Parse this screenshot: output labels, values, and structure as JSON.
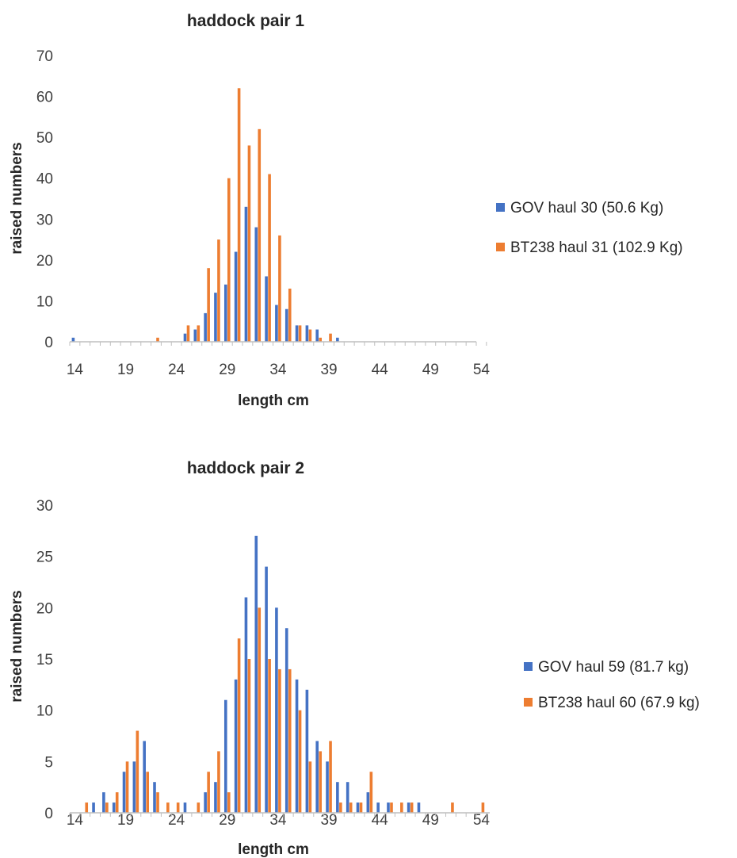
{
  "chart_data": [
    {
      "type": "bar",
      "title": "haddock pair 1",
      "xlabel": "length cm",
      "ylabel": "raised numbers",
      "ylim": [
        0,
        70
      ],
      "yticks": [
        0,
        10,
        20,
        30,
        40,
        50,
        60,
        70
      ],
      "x_range": [
        14,
        54
      ],
      "xtick_labels": [
        14,
        19,
        24,
        29,
        34,
        39,
        44,
        49,
        54
      ],
      "legend_position": "right",
      "grid": false,
      "series": [
        {
          "name": "GOV haul 30 (50.6 Kg)",
          "color": "#4472C4",
          "points": [
            [
              14,
              1
            ],
            [
              25,
              2
            ],
            [
              26,
              3
            ],
            [
              27,
              7
            ],
            [
              28,
              12
            ],
            [
              29,
              14
            ],
            [
              30,
              22
            ],
            [
              31,
              33
            ],
            [
              32,
              28
            ],
            [
              33,
              16
            ],
            [
              34,
              9
            ],
            [
              35,
              8
            ],
            [
              36,
              4
            ],
            [
              37,
              4
            ],
            [
              38,
              3
            ],
            [
              40,
              1
            ]
          ]
        },
        {
          "name": "BT238 haul 31 (102.9 Kg)",
          "color": "#ED7D31",
          "points": [
            [
              22,
              1
            ],
            [
              25,
              4
            ],
            [
              26,
              4
            ],
            [
              27,
              18
            ],
            [
              28,
              25
            ],
            [
              29,
              40
            ],
            [
              30,
              62
            ],
            [
              31,
              48
            ],
            [
              32,
              52
            ],
            [
              33,
              41
            ],
            [
              34,
              26
            ],
            [
              35,
              13
            ],
            [
              36,
              4
            ],
            [
              37,
              3
            ],
            [
              38,
              1
            ],
            [
              39,
              2
            ]
          ]
        }
      ]
    },
    {
      "type": "bar",
      "title": "haddock pair 2",
      "xlabel": "length cm",
      "ylabel": "raised numbers",
      "ylim": [
        0,
        30
      ],
      "yticks": [
        0,
        5,
        10,
        15,
        20,
        25,
        30
      ],
      "x_range": [
        14,
        54
      ],
      "xtick_labels": [
        14,
        19,
        24,
        29,
        34,
        39,
        44,
        49,
        54
      ],
      "legend_position": "right",
      "grid": false,
      "series": [
        {
          "name": "GOV haul 59 (81.7 kg)",
          "color": "#4472C4",
          "points": [
            [
              16,
              1
            ],
            [
              17,
              2
            ],
            [
              18,
              1
            ],
            [
              19,
              4
            ],
            [
              20,
              5
            ],
            [
              21,
              7
            ],
            [
              22,
              3
            ],
            [
              25,
              1
            ],
            [
              27,
              2
            ],
            [
              28,
              3
            ],
            [
              29,
              11
            ],
            [
              30,
              13
            ],
            [
              31,
              21
            ],
            [
              32,
              27
            ],
            [
              33,
              24
            ],
            [
              34,
              20
            ],
            [
              35,
              18
            ],
            [
              36,
              13
            ],
            [
              37,
              12
            ],
            [
              38,
              7
            ],
            [
              39,
              5
            ],
            [
              40,
              3
            ],
            [
              41,
              3
            ],
            [
              42,
              1
            ],
            [
              43,
              2
            ],
            [
              44,
              1
            ],
            [
              45,
              1
            ],
            [
              47,
              1
            ],
            [
              48,
              1
            ]
          ]
        },
        {
          "name": "BT238 haul 60 (67.9 kg)",
          "color": "#ED7D31",
          "points": [
            [
              15,
              1
            ],
            [
              17,
              1
            ],
            [
              18,
              2
            ],
            [
              19,
              5
            ],
            [
              20,
              8
            ],
            [
              21,
              4
            ],
            [
              22,
              2
            ],
            [
              23,
              1
            ],
            [
              24,
              1
            ],
            [
              26,
              1
            ],
            [
              27,
              4
            ],
            [
              28,
              6
            ],
            [
              29,
              2
            ],
            [
              30,
              17
            ],
            [
              31,
              15
            ],
            [
              32,
              20
            ],
            [
              33,
              15
            ],
            [
              34,
              14
            ],
            [
              35,
              14
            ],
            [
              36,
              10
            ],
            [
              37,
              5
            ],
            [
              38,
              6
            ],
            [
              39,
              7
            ],
            [
              40,
              1
            ],
            [
              41,
              1
            ],
            [
              42,
              1
            ],
            [
              43,
              4
            ],
            [
              45,
              1
            ],
            [
              46,
              1
            ],
            [
              47,
              1
            ],
            [
              51,
              1
            ],
            [
              54,
              1
            ]
          ]
        }
      ]
    }
  ]
}
